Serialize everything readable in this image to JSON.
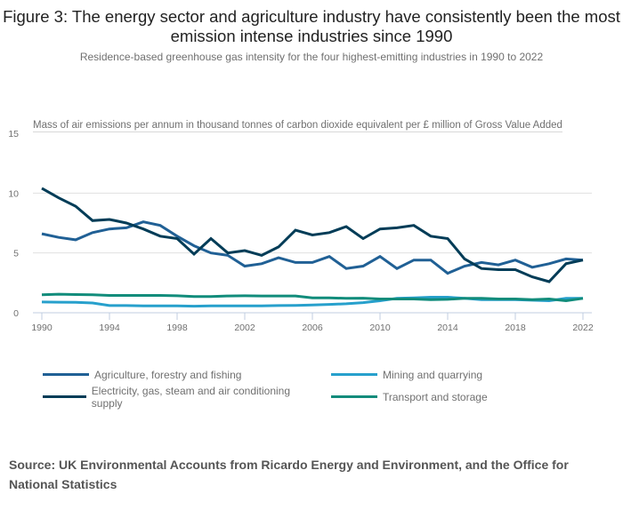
{
  "header": {
    "title": "Figure 3: The energy sector and agriculture industry have consistently been the most emission intense industries since 1990",
    "subtitle": "Residence-based greenhouse gas intensity for the four highest-emitting industries in 1990 to 2022"
  },
  "source": "Source: UK Environmental Accounts from Ricardo Energy and Environment, and the Office for National Statistics",
  "chart_data": {
    "type": "line",
    "title": "Figure 3: The energy sector and agriculture industry have consistently been the most emission intense industries since 1990",
    "subtitle": "Residence-based greenhouse gas intensity for the four highest-emitting industries in 1990 to 2022",
    "xlabel": "",
    "ylabel": "Mass of air emissions per annum in thousand tonnes of carbon dioxide equivalent per £ million of Gross Value Added",
    "ylim": [
      0,
      15
    ],
    "yticks": [
      "0",
      "5",
      "10",
      "15"
    ],
    "xticks": [
      "1990",
      "1994",
      "1998",
      "2002",
      "2006",
      "2010",
      "2014",
      "2018",
      "2022"
    ],
    "grid": true,
    "legend_position": "bottom",
    "x": [
      1990,
      1991,
      1992,
      1993,
      1994,
      1995,
      1996,
      1997,
      1998,
      1999,
      2000,
      2001,
      2002,
      2003,
      2004,
      2005,
      2006,
      2007,
      2008,
      2009,
      2010,
      2011,
      2012,
      2013,
      2014,
      2015,
      2016,
      2017,
      2018,
      2019,
      2020,
      2021,
      2022
    ],
    "series": [
      {
        "name": "Agriculture, forestry and fishing",
        "color": "#206095",
        "values": [
          6.6,
          6.3,
          6.1,
          6.7,
          7.0,
          7.1,
          7.6,
          7.3,
          6.4,
          5.6,
          5.0,
          4.8,
          3.9,
          4.1,
          4.6,
          4.2,
          4.2,
          4.7,
          3.7,
          3.9,
          4.7,
          3.7,
          4.4,
          4.4,
          3.3,
          3.9,
          4.2,
          4.0,
          4.4,
          3.8,
          4.1,
          4.5,
          4.4
        ]
      },
      {
        "name": "Mining and quarrying",
        "color": "#27a0cc",
        "values": [
          0.9,
          0.88,
          0.87,
          0.82,
          0.6,
          0.6,
          0.58,
          0.58,
          0.58,
          0.55,
          0.57,
          0.58,
          0.58,
          0.58,
          0.6,
          0.62,
          0.65,
          0.7,
          0.75,
          0.85,
          1.0,
          1.2,
          1.25,
          1.3,
          1.3,
          1.2,
          1.1,
          1.1,
          1.1,
          1.05,
          1.0,
          1.2,
          1.2
        ]
      },
      {
        "name": "Electricity, gas, steam and air conditioning supply",
        "color": "#003c57",
        "values": [
          10.4,
          9.6,
          8.9,
          7.7,
          7.8,
          7.5,
          7.0,
          6.4,
          6.2,
          4.9,
          6.2,
          5.0,
          5.2,
          4.8,
          5.5,
          6.9,
          6.5,
          6.7,
          7.2,
          6.2,
          7.0,
          7.1,
          7.3,
          6.4,
          6.2,
          4.5,
          3.7,
          3.6,
          3.6,
          3.0,
          2.6,
          4.1,
          4.4
        ]
      },
      {
        "name": "Transport and storage",
        "color": "#118c7b",
        "values": [
          1.5,
          1.55,
          1.52,
          1.5,
          1.45,
          1.45,
          1.45,
          1.45,
          1.42,
          1.35,
          1.35,
          1.4,
          1.42,
          1.4,
          1.4,
          1.4,
          1.25,
          1.25,
          1.2,
          1.22,
          1.15,
          1.15,
          1.15,
          1.1,
          1.12,
          1.2,
          1.2,
          1.15,
          1.15,
          1.1,
          1.15,
          1.0,
          1.2
        ]
      }
    ]
  }
}
